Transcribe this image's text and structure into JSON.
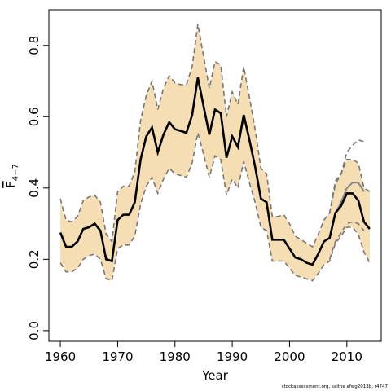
{
  "chart_data": {
    "type": "line",
    "xlabel": "Year",
    "ylabel_main": "F",
    "ylabel_sub": "4−7",
    "x_ticks": [
      1960,
      1970,
      1980,
      1990,
      2000,
      2010
    ],
    "y_ticks": [
      "0.0",
      "0.2",
      "0.4",
      "0.6",
      "0.8"
    ],
    "xlim": [
      1958,
      2016
    ],
    "ylim": [
      -0.03,
      0.9
    ],
    "grid": false,
    "band_color": "#f5deb3",
    "line_color": "#000000",
    "x": [
      1960,
      1961,
      1962,
      1963,
      1964,
      1965,
      1966,
      1967,
      1968,
      1969,
      1970,
      1971,
      1972,
      1973,
      1974,
      1975,
      1976,
      1977,
      1978,
      1979,
      1980,
      1981,
      1982,
      1983,
      1984,
      1985,
      1986,
      1987,
      1988,
      1989,
      1990,
      1991,
      1992,
      1993,
      1994,
      1995,
      1996,
      1997,
      1998,
      1999,
      2000,
      2001,
      2002,
      2003,
      2004,
      2005,
      2006,
      2007,
      2008,
      2009,
      2010,
      2011,
      2012,
      2013,
      2014
    ],
    "series": [
      {
        "role": "estimate",
        "values": [
          0.275,
          0.235,
          0.235,
          0.25,
          0.285,
          0.29,
          0.3,
          0.28,
          0.2,
          0.195,
          0.31,
          0.325,
          0.325,
          0.36,
          0.48,
          0.545,
          0.57,
          0.5,
          0.55,
          0.585,
          0.565,
          0.56,
          0.555,
          0.605,
          0.71,
          0.63,
          0.55,
          0.62,
          0.61,
          0.485,
          0.545,
          0.515,
          0.605,
          0.535,
          0.46,
          0.37,
          0.36,
          0.255,
          0.255,
          0.255,
          0.23,
          0.205,
          0.2,
          0.19,
          0.185,
          0.215,
          0.25,
          0.26,
          0.33,
          0.35,
          0.385,
          0.385,
          0.365,
          0.305,
          0.285
        ]
      },
      {
        "role": "upper",
        "values": [
          0.37,
          0.31,
          0.305,
          0.32,
          0.365,
          0.375,
          0.38,
          0.36,
          0.27,
          0.25,
          0.39,
          0.405,
          0.405,
          0.445,
          0.59,
          0.66,
          0.7,
          0.62,
          0.68,
          0.715,
          0.695,
          0.69,
          0.69,
          0.74,
          0.86,
          0.77,
          0.68,
          0.755,
          0.745,
          0.6,
          0.67,
          0.635,
          0.74,
          0.655,
          0.565,
          0.455,
          0.44,
          0.32,
          0.32,
          0.325,
          0.3,
          0.265,
          0.255,
          0.245,
          0.235,
          0.27,
          0.31,
          0.33,
          0.41,
          0.44,
          0.48,
          0.48,
          0.47,
          0.4,
          0.39
        ]
      },
      {
        "role": "lower",
        "values": [
          0.19,
          0.165,
          0.165,
          0.175,
          0.2,
          0.21,
          0.215,
          0.2,
          0.145,
          0.14,
          0.23,
          0.24,
          0.24,
          0.265,
          0.355,
          0.405,
          0.43,
          0.385,
          0.425,
          0.455,
          0.44,
          0.435,
          0.43,
          0.47,
          0.555,
          0.495,
          0.43,
          0.49,
          0.48,
          0.38,
          0.425,
          0.4,
          0.475,
          0.415,
          0.36,
          0.29,
          0.28,
          0.195,
          0.195,
          0.195,
          0.175,
          0.155,
          0.15,
          0.145,
          0.14,
          0.16,
          0.185,
          0.195,
          0.245,
          0.265,
          0.29,
          0.29,
          0.27,
          0.22,
          0.19
        ]
      },
      {
        "role": "alternative-estimate",
        "x": [
          2007,
          2008,
          2009,
          2010,
          2011,
          2012,
          2013
        ],
        "values": [
          0.26,
          0.33,
          0.36,
          0.4,
          0.415,
          0.415,
          0.39
        ]
      },
      {
        "role": "alternative-upper",
        "x": [
          2007,
          2008,
          2009,
          2010,
          2011,
          2012,
          2013
        ],
        "values": [
          0.33,
          0.42,
          0.44,
          0.5,
          0.52,
          0.535,
          0.53
        ]
      },
      {
        "role": "alternative-lower",
        "x": [
          2007,
          2008,
          2009,
          2010,
          2011,
          2012,
          2013
        ],
        "values": [
          0.2,
          0.25,
          0.275,
          0.3,
          0.305,
          0.3,
          0.28
        ]
      }
    ]
  },
  "footer": "stockassessment.org, saithe afwg2013b, r4747"
}
